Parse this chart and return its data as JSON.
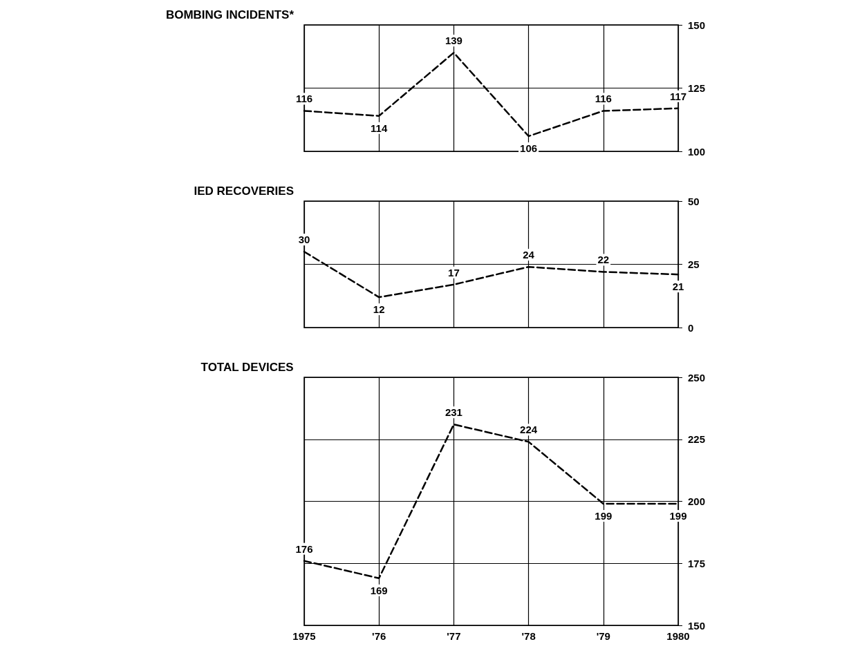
{
  "chart_data": [
    {
      "type": "line",
      "title": "BOMBING INCIDENTS*",
      "x": [
        1975,
        1976,
        1977,
        1978,
        1979,
        1980
      ],
      "values": [
        116,
        114,
        139,
        106,
        116,
        117
      ],
      "color": "#000000",
      "xlim": [
        1975,
        1980
      ],
      "xticks": [
        {
          "value": 1975,
          "label": null
        },
        {
          "value": 1976,
          "label": null
        },
        {
          "value": 1977,
          "label": null
        },
        {
          "value": 1978,
          "label": null
        },
        {
          "value": 1979,
          "label": null
        },
        {
          "value": 1980,
          "label": null
        }
      ],
      "ylim": [
        100,
        150
      ],
      "yticks": [
        100,
        125,
        150
      ],
      "grid": true,
      "data_labels": true,
      "line_style": "dashed",
      "tick_labels": "y"
    },
    {
      "type": "line",
      "title": "IED RECOVERIES",
      "x": [
        1975,
        1976,
        1977,
        1978,
        1979,
        1980
      ],
      "values": [
        30,
        12,
        17,
        24,
        22,
        21
      ],
      "color": "#000000",
      "xlim": [
        1975,
        1980
      ],
      "xticks": [
        {
          "value": 1975,
          "label": null
        },
        {
          "value": 1976,
          "label": null
        },
        {
          "value": 1977,
          "label": null
        },
        {
          "value": 1978,
          "label": null
        },
        {
          "value": 1979,
          "label": null
        },
        {
          "value": 1980,
          "label": null
        }
      ],
      "ylim": [
        0,
        50
      ],
      "yticks": [
        0,
        25,
        50
      ],
      "grid": true,
      "data_labels": true,
      "line_style": "dashed",
      "tick_labels": "y"
    },
    {
      "type": "line",
      "title": "TOTAL DEVICES",
      "x": [
        1975,
        1976,
        1977,
        1978,
        1979,
        1980
      ],
      "values": [
        176,
        169,
        231,
        224,
        199,
        199
      ],
      "color": "#000000",
      "xlim": [
        1975,
        1980
      ],
      "xticks": [
        1975,
        {
          "value": 1976,
          "label": "'76"
        },
        {
          "value": 1977,
          "label": "'77"
        },
        {
          "value": 1978,
          "label": "'78"
        },
        {
          "value": 1979,
          "label": "'79"
        },
        1980
      ],
      "ylim": [
        150,
        250
      ],
      "yticks": [
        150,
        175,
        200,
        225,
        250
      ],
      "grid": true,
      "data_labels": true,
      "line_style": "dashed"
    }
  ]
}
